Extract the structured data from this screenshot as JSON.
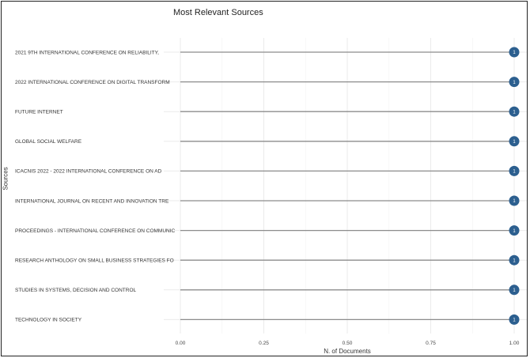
{
  "chart_data": {
    "type": "lollipop",
    "title": "Most Relevant Sources",
    "xlabel": "N. of Documents",
    "ylabel": "Sources",
    "xlim": [
      0,
      1
    ],
    "x_ticks": [
      "0.00",
      "0.25",
      "0.50",
      "0.75",
      "1.00"
    ],
    "grid": true,
    "colors": {
      "point": "#2c5f8f",
      "stem": "#8c8c8c",
      "grid": "#ebebeb"
    },
    "categories": [
      "2021 9TH INTERNATIONAL CONFERENCE ON RELIABILITY,",
      "2022 INTERNATIONAL CONFERENCE ON DIGITAL TRANSFORM",
      "FUTURE INTERNET",
      "GLOBAL SOCIAL WELFARE",
      "ICACNIS 2022 - 2022 INTERNATIONAL CONFERENCE ON AD",
      "INTERNATIONAL JOURNAL ON RECENT AND INNOVATION TRE",
      "PROCEEDINGS - INTERNATIONAL CONFERENCE ON COMMUNIC",
      "RESEARCH ANTHOLOGY ON SMALL BUSINESS STRATEGIES FO",
      "STUDIES IN SYSTEMS, DECISION AND CONTROL",
      "TECHNOLOGY IN SOCIETY"
    ],
    "values": [
      1,
      1,
      1,
      1,
      1,
      1,
      1,
      1,
      1,
      1
    ],
    "point_labels": [
      "1",
      "1",
      "1",
      "1",
      "1",
      "1",
      "1",
      "1",
      "1",
      "1"
    ]
  }
}
